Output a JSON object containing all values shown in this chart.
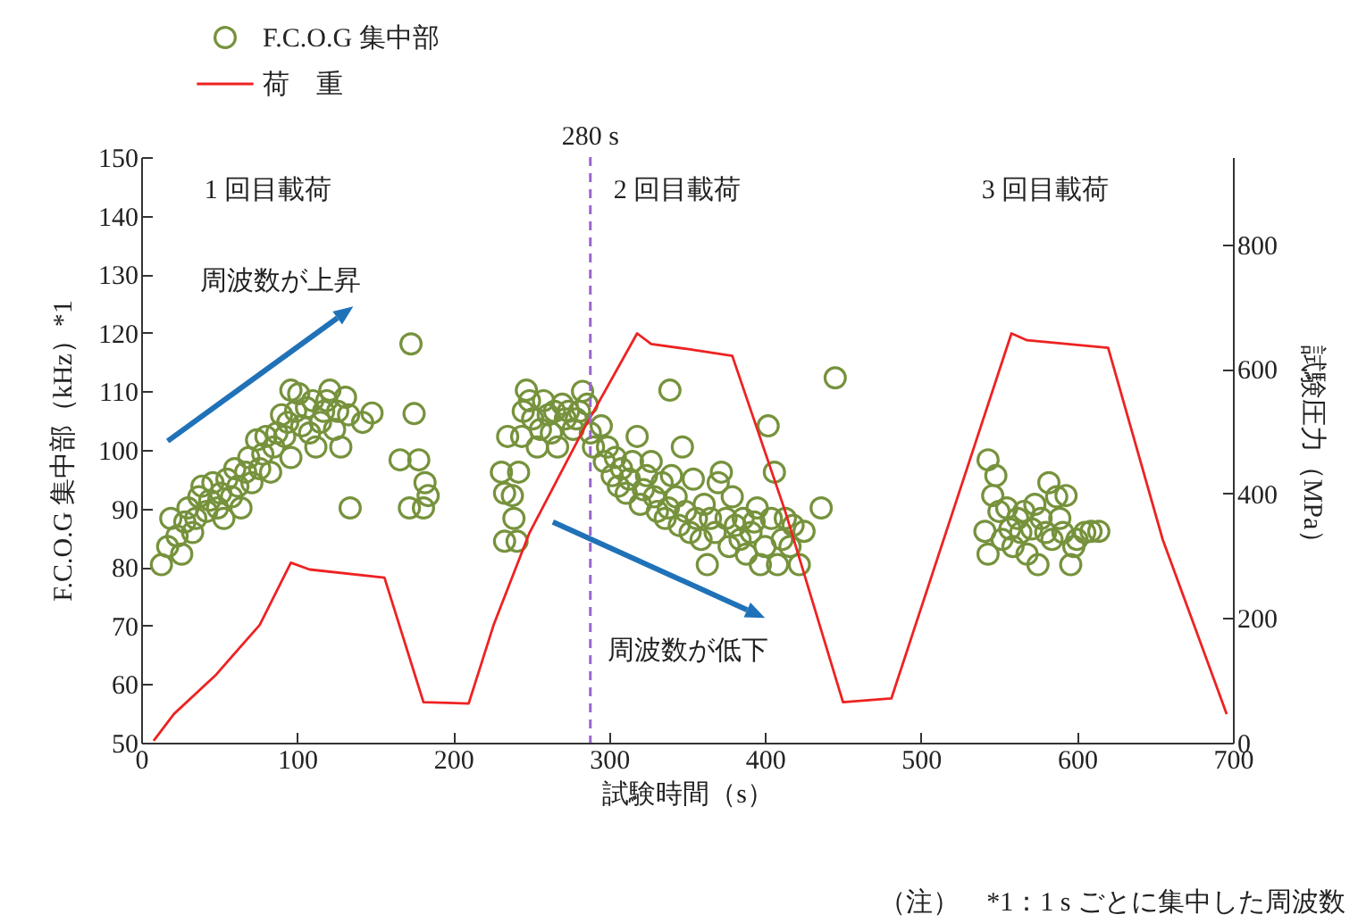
{
  "chart_data": {
    "type": "scatter",
    "xlabel": "試験時間（s）",
    "ylabel": "F.C.O.G 集中部（kHz）*1",
    "y2label": "試験圧力（MPa）",
    "xlim": [
      0,
      700
    ],
    "xticks": [
      0,
      100,
      200,
      300,
      400,
      500,
      600,
      700
    ],
    "ylim": [
      50,
      150
    ],
    "yticks": [
      50,
      60,
      70,
      80,
      90,
      100,
      110,
      120,
      130,
      140,
      150
    ],
    "y2lim": [
      0,
      940
    ],
    "y2ticks": [
      0,
      200,
      400,
      600,
      800
    ],
    "grid": false,
    "legend": "top left",
    "ref_lines": [
      {
        "axis": "x",
        "value": 288,
        "label": "280 s",
        "color": "#9966cc",
        "line_style": "dashed"
      }
    ],
    "annotations": [
      "1 回目載荷",
      "2 回目載荷",
      "3 回目載荷",
      "周波数が上昇",
      "周波数が低下",
      "（注）　*1：1 s ごとに集中した周波数"
    ],
    "series": [
      {
        "name": "F.C.O.G 集中部",
        "color": "#76923c",
        "marker": "circle",
        "x": [
          13,
          17,
          19,
          23,
          26,
          28,
          30,
          33,
          35,
          37,
          39,
          42,
          44,
          46,
          49,
          51,
          53,
          55,
          58,
          60,
          62,
          64,
          67,
          69,
          71,
          74,
          76,
          78,
          80,
          83,
          85,
          87,
          90,
          92,
          94,
          96,
          96,
          99,
          101,
          103,
          106,
          108,
          110,
          112,
          115,
          117,
          119,
          121,
          124,
          126,
          128,
          131,
          133,
          142,
          148,
          134,
          173,
          175,
          166,
          178,
          172,
          181,
          182,
          184,
          231,
          233,
          233,
          235,
          238,
          239,
          241,
          242,
          244,
          245,
          247,
          249,
          251,
          254,
          256,
          258,
          261,
          263,
          265,
          267,
          270,
          272,
          274,
          277,
          279,
          281,
          283,
          286,
          288,
          290,
          295,
          297,
          299,
          302,
          304,
          306,
          308,
          311,
          313,
          315,
          318,
          320,
          322,
          324,
          327,
          329,
          331,
          334,
          336,
          338,
          339,
          340,
          343,
          345,
          347,
          349,
          352,
          354,
          356,
          359,
          361,
          363,
          365,
          368,
          370,
          372,
          375,
          377,
          379,
          381,
          384,
          386,
          388,
          391,
          393,
          395,
          397,
          400,
          402,
          404,
          406,
          408,
          411,
          413,
          416,
          418,
          422,
          425,
          436,
          445,
          543,
          546,
          548,
          541,
          543,
          550,
          552,
          555,
          557,
          559,
          562,
          564,
          566,
          568,
          571,
          573,
          575,
          577,
          580,
          582,
          584,
          587,
          589,
          591,
          593,
          596,
          598,
          600,
          605,
          609,
          614
        ],
        "values": [
          80.4,
          83.5,
          88.3,
          85.3,
          82.2,
          87.7,
          90.1,
          85.9,
          88.3,
          92,
          93.8,
          89.5,
          91.4,
          94.4,
          90.1,
          92.6,
          88.3,
          95,
          92,
          96.8,
          93.8,
          90.1,
          96.2,
          98.7,
          94.4,
          101.7,
          96.8,
          99.3,
          102.3,
          96.2,
          100.5,
          102.9,
          106,
          102.3,
          104.7,
          110.2,
          98.7,
          106.6,
          109.6,
          104.1,
          107.2,
          102.9,
          108.4,
          100.5,
          104.7,
          106.6,
          108.4,
          110.2,
          103.5,
          106.6,
          100.5,
          109,
          106,
          104.7,
          106.3,
          90.1,
          118.1,
          106.2,
          98.3,
          98.3,
          90.1,
          90.1,
          94.4,
          92.2,
          96.2,
          92.6,
          84.4,
          102.3,
          92.2,
          88.3,
          84.4,
          96.2,
          102.3,
          106.6,
          110.2,
          108.4,
          105.3,
          100.5,
          103.5,
          108.4,
          106,
          102.9,
          106.6,
          100.5,
          107.8,
          105.3,
          106.6,
          103.5,
          105.3,
          106.6,
          110,
          107.8,
          102.9,
          100.5,
          104.1,
          98,
          100.5,
          95.6,
          98.7,
          93.8,
          96.8,
          92.6,
          95,
          98,
          102.3,
          90.7,
          93.2,
          95.6,
          98,
          92,
          89.5,
          94.4,
          88.3,
          90.1,
          110.2,
          95.6,
          92,
          87.1,
          100.5,
          89.5,
          85.9,
          95,
          88.3,
          84.7,
          90.7,
          80.4,
          88.3,
          85.9,
          94.4,
          96.2,
          88.3,
          83.5,
          92,
          87.1,
          84.7,
          88.3,
          82.2,
          85.9,
          87.7,
          90.1,
          80.4,
          83.5,
          104.1,
          88.3,
          96.2,
          80.4,
          84.7,
          88.3,
          83.5,
          87.1,
          80.4,
          86.1,
          90.1,
          112.3,
          98.3,
          92.2,
          95.6,
          86.1,
          82.2,
          89.5,
          84.7,
          90.1,
          86.5,
          83.5,
          88.3,
          85.9,
          89.5,
          82.2,
          86.5,
          90.7,
          80.4,
          88.3,
          85.9,
          94.4,
          84.7,
          92,
          88.3,
          85.9,
          92.2,
          80.4,
          83.5,
          84.7,
          85.9,
          86.1,
          86.1
        ]
      },
      {
        "name": "荷　重",
        "color": "#ee2222",
        "type": "line",
        "axis": "y2",
        "x": [
          8,
          21,
          48,
          76,
          96,
          108,
          156,
          181,
          210,
          226,
          249,
          283,
          318,
          327,
          350,
          379,
          413,
          450,
          481,
          558,
          568,
          620,
          655,
          696
        ],
        "values": [
          3,
          46,
          109,
          189,
          289,
          278,
          265,
          65,
          63,
          189,
          337,
          500,
          657,
          640,
          632,
          621,
          371,
          65,
          71,
          657,
          646,
          634,
          326,
          46
        ]
      }
    ]
  }
}
